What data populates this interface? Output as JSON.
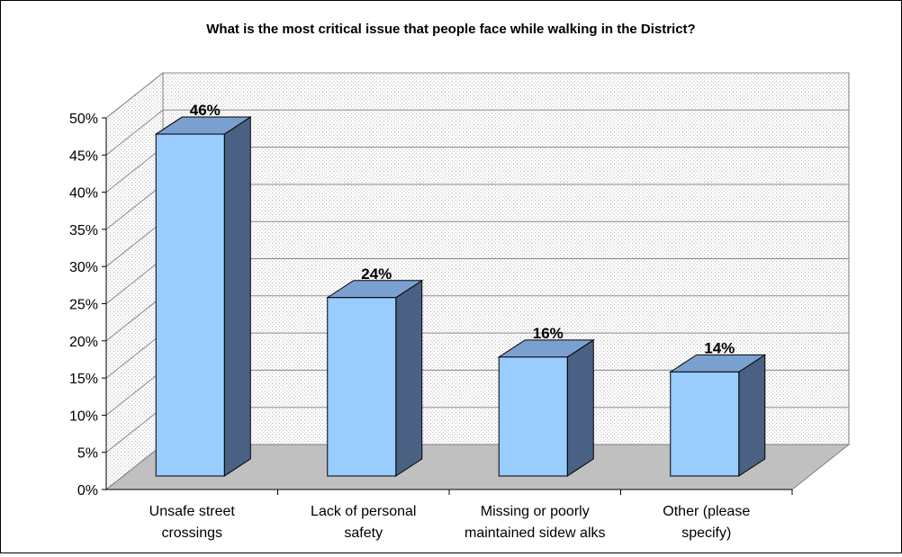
{
  "chart_data": {
    "type": "bar",
    "title": "What is the most critical issue that people face while walking in the District?",
    "categories": [
      [
        "Unsafe street",
        "crossings"
      ],
      [
        "Lack of personal",
        "safety"
      ],
      [
        "Missing or poorly",
        "maintained sidew alks"
      ],
      [
        "Other (please",
        "specify)"
      ]
    ],
    "values": [
      46,
      24,
      16,
      14
    ],
    "value_labels": [
      "46%",
      "24%",
      "16%",
      "14%"
    ],
    "ylim": [
      0,
      50
    ],
    "y_ticks": [
      {
        "value": 0,
        "label": "0%"
      },
      {
        "value": 5,
        "label": "5%"
      },
      {
        "value": 10,
        "label": "10%"
      },
      {
        "value": 15,
        "label": "15%"
      },
      {
        "value": 20,
        "label": "20%"
      },
      {
        "value": 25,
        "label": "25%"
      },
      {
        "value": 30,
        "label": "30%"
      },
      {
        "value": 35,
        "label": "35%"
      },
      {
        "value": 40,
        "label": "40%"
      },
      {
        "value": 45,
        "label": "45%"
      },
      {
        "value": 50,
        "label": "50%"
      }
    ],
    "grid": true,
    "legend": "none",
    "colors": {
      "bar_front": "#99CCFF",
      "bar_side": "#4A6184",
      "bar_top": "#7AA0D0",
      "floor": "#C0C0C0",
      "wall": "#F2F2F2"
    }
  }
}
